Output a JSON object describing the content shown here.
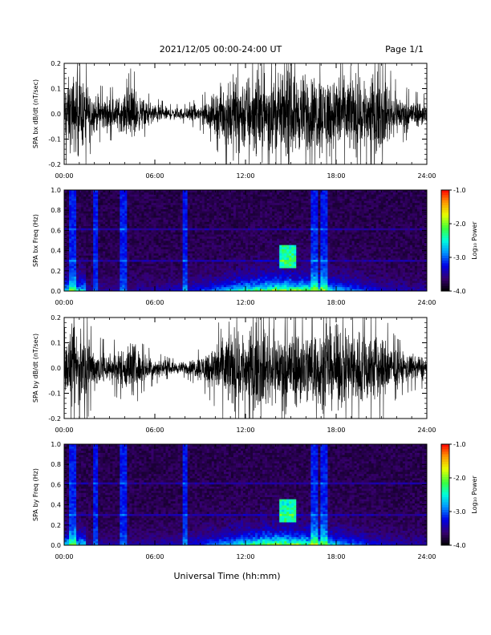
{
  "header": {
    "title": "2021/12/05  00:00-24:00 UT",
    "page": "Page 1/1"
  },
  "chart_data": [
    {
      "type": "line",
      "ylabel": "SPA bx dB/dt (nT/sec)",
      "x_ticks": [
        "00:00",
        "06:00",
        "12:00",
        "18:00",
        "24:00"
      ],
      "y_ticks": [
        "-0.2",
        "-0.1",
        "0.0",
        "0.1",
        "0.2"
      ],
      "xlim": [
        0,
        24
      ],
      "ylim": [
        -0.2,
        0.2
      ],
      "envelope": {
        "hours": [
          0,
          0.5,
          1,
          1.5,
          2,
          3,
          4,
          4.5,
          5,
          6,
          7,
          8,
          9,
          10,
          11,
          12,
          13,
          14,
          15,
          16,
          17,
          18,
          19,
          20,
          21,
          22,
          23,
          24
        ],
        "amplitude": [
          0.15,
          0.2,
          0.2,
          0.15,
          0.09,
          0.08,
          0.09,
          0.15,
          0.08,
          0.05,
          0.03,
          0.03,
          0.05,
          0.1,
          0.2,
          0.2,
          0.2,
          0.18,
          0.2,
          0.2,
          0.2,
          0.2,
          0.2,
          0.2,
          0.18,
          0.1,
          0.07,
          0.06
        ]
      }
    },
    {
      "type": "heatmap",
      "ylabel": "SPA bx Freq (Hz)",
      "x_ticks": [
        "00:00",
        "06:00",
        "12:00",
        "18:00",
        "24:00"
      ],
      "y_ticks": [
        "0.0",
        "0.2",
        "0.4",
        "0.6",
        "0.8",
        "1.0"
      ],
      "xlim": [
        0,
        24
      ],
      "ylim": [
        0,
        1
      ],
      "colorbar": {
        "label": "Log₁₀ Power",
        "ticks": [
          "-1.0",
          "-2.0",
          "-3.0",
          "-4.0"
        ],
        "range": [
          -4,
          -1
        ]
      }
    },
    {
      "type": "line",
      "ylabel": "SPA by dB/dt (nT/sec)",
      "x_ticks": [
        "00:00",
        "06:00",
        "12:00",
        "18:00",
        "24:00"
      ],
      "y_ticks": [
        "-0.2",
        "-0.1",
        "0.0",
        "0.1",
        "0.2"
      ],
      "xlim": [
        0,
        24
      ],
      "ylim": [
        -0.2,
        0.2
      ],
      "envelope": {
        "hours": [
          0,
          0.5,
          1,
          1.5,
          2,
          3,
          4,
          4.5,
          5,
          6,
          7,
          8,
          9,
          10,
          11,
          12,
          13,
          14,
          15,
          16,
          17,
          18,
          19,
          20,
          21,
          22,
          23,
          24
        ],
        "amplitude": [
          0.12,
          0.2,
          0.2,
          0.16,
          0.1,
          0.08,
          0.1,
          0.15,
          0.08,
          0.05,
          0.03,
          0.03,
          0.06,
          0.12,
          0.2,
          0.2,
          0.2,
          0.18,
          0.2,
          0.2,
          0.2,
          0.2,
          0.2,
          0.2,
          0.17,
          0.09,
          0.07,
          0.06
        ]
      }
    },
    {
      "type": "heatmap",
      "ylabel": "SPA by Freq (Hz)",
      "x_ticks": [
        "00:00",
        "06:00",
        "12:00",
        "18:00",
        "24:00"
      ],
      "y_ticks": [
        "0.0",
        "0.2",
        "0.4",
        "0.6",
        "0.8",
        "1.0"
      ],
      "xlim": [
        0,
        24
      ],
      "ylim": [
        0,
        1
      ],
      "colorbar": {
        "label": "Log₁₀ Power",
        "ticks": [
          "-1.0",
          "-2.0",
          "-3.0",
          "-4.0"
        ],
        "range": [
          -4,
          -1
        ]
      }
    }
  ],
  "footer": {
    "xlabel": "Universal Time (hh:mm)"
  }
}
